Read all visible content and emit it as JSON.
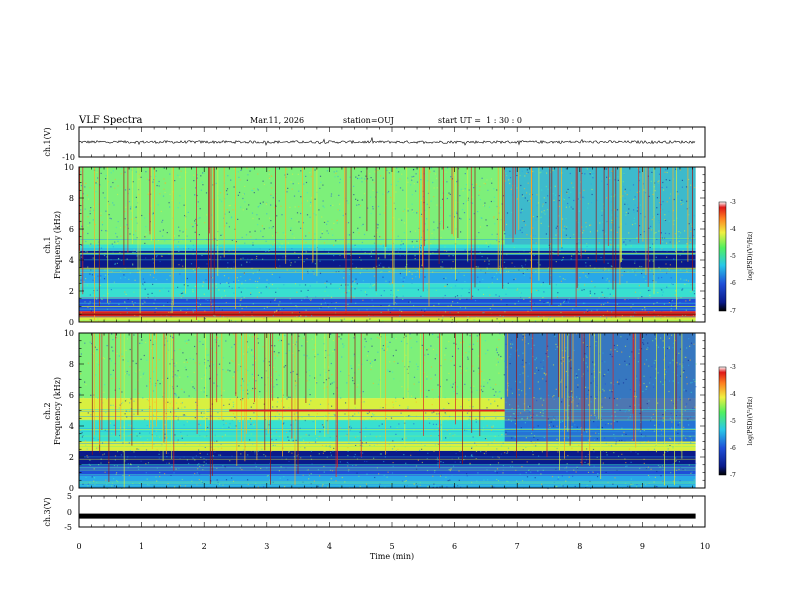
{
  "header": {
    "title": "VLF Spectra",
    "date": "Mar.11, 2026",
    "station": "station=OUJ",
    "start": "start UT =  1 : 30 : 0"
  },
  "colors": {
    "spectro_palette": [
      "#0a1a8a",
      "#1f4fd8",
      "#28a8e8",
      "#38e0d0",
      "#7df07a",
      "#d8f040",
      "#ffb020",
      "#e02020",
      "#9a1010"
    ]
  },
  "chart_data": [
    {
      "type": "line",
      "name": "ch1-waveform",
      "ylabel": "ch.1(V)",
      "ylim": [
        -10,
        10
      ],
      "yticks": [
        "10",
        "-10"
      ],
      "baseline_value": 0,
      "description_of_series": "noisy waveform centred near 0 V with amplitude about ±1 V"
    },
    {
      "type": "heatmap",
      "name": "ch1-spectrogram",
      "ylabel_lines": [
        "ch.1",
        "Frequency (kHz)"
      ],
      "ylim": [
        0,
        10
      ],
      "yticks": [
        "0",
        "2",
        "4",
        "6",
        "8",
        "10"
      ],
      "xlim": [
        0,
        10
      ],
      "data_end_minute": 9.85,
      "colorbar": {
        "label": "log(PSD)(V²/Hz)",
        "range": [
          -7,
          -3
        ],
        "ticks": [
          "-3",
          "-4",
          "-5",
          "-6",
          "-7"
        ]
      },
      "bands": [
        {
          "from_khz": 0,
          "to_khz": 0.3,
          "level": 5
        },
        {
          "from_khz": 0.3,
          "to_khz": 0.7,
          "level": 7
        },
        {
          "from_khz": 0.7,
          "to_khz": 1.6,
          "level": 1
        },
        {
          "from_khz": 1.6,
          "to_khz": 2.5,
          "level": 3
        },
        {
          "from_khz": 2.5,
          "to_khz": 3.4,
          "level": 2
        },
        {
          "from_khz": 3.4,
          "to_khz": 4.6,
          "level": 0
        },
        {
          "from_khz": 4.6,
          "to_khz": 5.0,
          "level": 3
        },
        {
          "from_khz": 5.0,
          "to_khz": 8.0,
          "level": 4
        },
        {
          "from_khz": 8.0,
          "to_khz": 10.0,
          "level": 4
        }
      ],
      "change_minute": 6.8,
      "after_change_upper_level": 2
    },
    {
      "type": "heatmap",
      "name": "ch2-spectrogram",
      "ylabel_lines": [
        "ch.2",
        "Frequency (kHz)"
      ],
      "ylim": [
        0,
        10
      ],
      "yticks": [
        "0",
        "2",
        "4",
        "6",
        "8",
        "10"
      ],
      "xlim": [
        0,
        10
      ],
      "data_end_minute": 9.85,
      "colorbar": {
        "label": "log(PSD)(V²/Hz)",
        "range": [
          -7,
          -3
        ],
        "ticks": [
          "-3",
          "-4",
          "-5",
          "-6",
          "-7"
        ]
      },
      "bands": [
        {
          "from_khz": 0,
          "to_khz": 0.8,
          "level": 2
        },
        {
          "from_khz": 0.8,
          "to_khz": 1.4,
          "level": 1
        },
        {
          "from_khz": 1.4,
          "to_khz": 2.4,
          "level": 0
        },
        {
          "from_khz": 2.4,
          "to_khz": 3.0,
          "level": 5
        },
        {
          "from_khz": 3.0,
          "to_khz": 4.4,
          "level": 3
        },
        {
          "from_khz": 4.4,
          "to_khz": 5.8,
          "level": 5
        },
        {
          "from_khz": 5.8,
          "to_khz": 10.0,
          "level": 4
        }
      ],
      "red_line_khz": 5.0,
      "red_line_span_minutes": [
        2.4,
        6.8
      ],
      "change_minute": 6.8,
      "after_change_upper_level": 1
    },
    {
      "type": "line",
      "name": "ch3-waveform",
      "ylabel": "ch.3(V)",
      "ylim": [
        -5,
        5
      ],
      "yticks": [
        "5",
        "0",
        "-5"
      ],
      "baseline_value": -1.5,
      "x_axis": {
        "label": "Time (min)",
        "range": [
          0,
          10
        ],
        "ticks": [
          "0",
          "1",
          "2",
          "3",
          "4",
          "5",
          "6",
          "7",
          "8",
          "9",
          "10"
        ]
      }
    }
  ]
}
